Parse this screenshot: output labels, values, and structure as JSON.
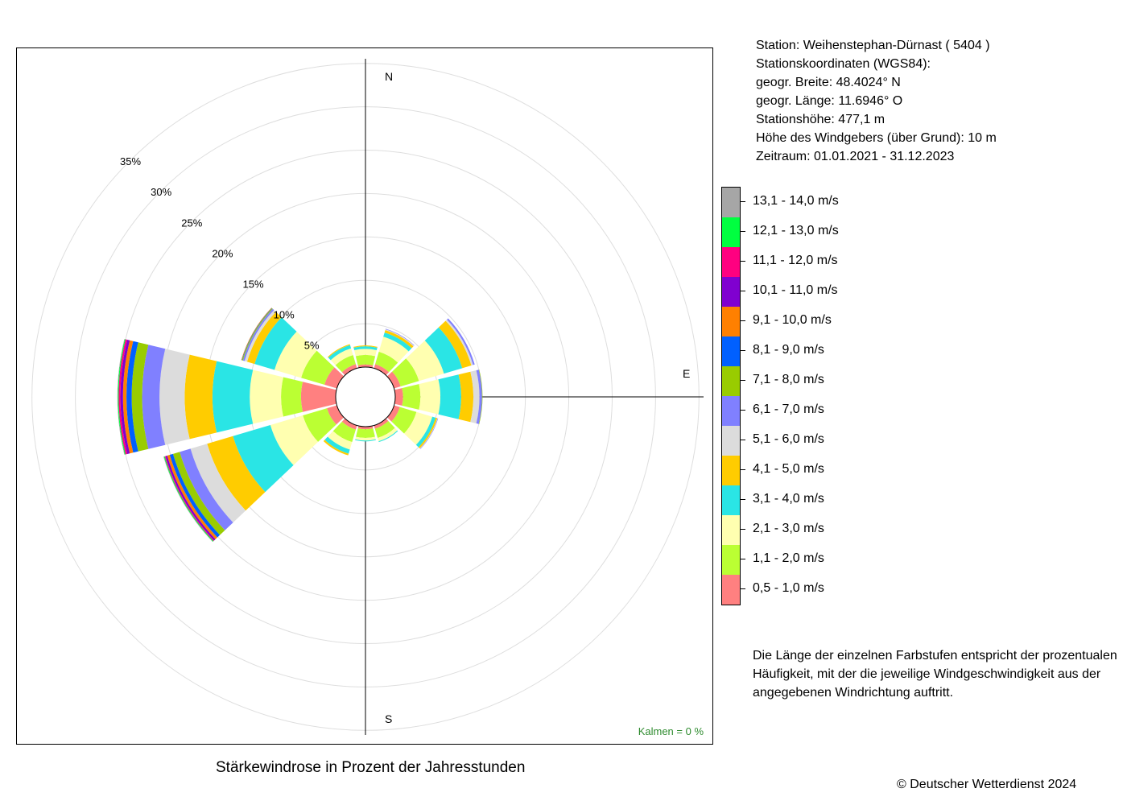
{
  "station": {
    "lines": [
      "Station:  Weihenstephan-Dürnast  ( 5404 )",
      "Stationskoordinaten (WGS84):",
      "geogr. Breite: 48.4024° N",
      "geogr. Länge: 11.6946° O",
      "Stationshöhe: 477,1 m",
      "Höhe des Windgebers (über Grund): 10 m",
      "Zeitraum: 01.01.2021 - 31.12.2023"
    ]
  },
  "compass": {
    "north": "N",
    "east": "E",
    "south": "S"
  },
  "calm_label": "Kalmen  =  0 %",
  "caption": "Stärkewindrose in Prozent der Jahresstunden",
  "note": "Die Länge der einzelnen Farbstufen entspricht der prozentualen Häufigkeit, mit der die jeweilige Windgeschwindigkeit aus der angegebenen Windrichtung auftritt.",
  "copyright": "© Deutscher Wetterdienst  2024",
  "legend": [
    {
      "label": "13,1 - 14,0 m/s",
      "color": "#a6a6a6"
    },
    {
      "label": "12,1 - 13,0 m/s",
      "color": "#00ff40"
    },
    {
      "label": "11,1 - 12,0 m/s",
      "color": "#ff0080"
    },
    {
      "label": "10,1 - 11,0 m/s",
      "color": "#8000d0"
    },
    {
      "label": "9,1 - 10,0 m/s",
      "color": "#ff8000"
    },
    {
      "label": "8,1 - 9,0 m/s",
      "color": "#0060ff"
    },
    {
      "label": "7,1 - 8,0 m/s",
      "color": "#99cc00"
    },
    {
      "label": "6,1 - 7,0 m/s",
      "color": "#8080ff"
    },
    {
      "label": "5,1 - 6,0 m/s",
      "color": "#dcdcdc"
    },
    {
      "label": "4,1 - 5,0 m/s",
      "color": "#ffcc00"
    },
    {
      "label": "3,1 - 4,0 m/s",
      "color": "#2ae5e5"
    },
    {
      "label": "2,1 - 3,0 m/s",
      "color": "#ffffb0"
    },
    {
      "label": "1,1 - 2,0 m/s",
      "color": "#bbff33"
    },
    {
      "label": "0,5 - 1,0 m/s",
      "color": "#ff8080"
    }
  ],
  "chart_data": {
    "type": "wind-rose",
    "title": "Stärkewindrose in Prozent der Jahresstunden",
    "directions_deg": [
      0,
      30,
      60,
      90,
      120,
      150,
      180,
      210,
      240,
      270,
      300,
      330
    ],
    "ring_labels": [
      "5%",
      "10%",
      "15%",
      "20%",
      "25%",
      "30%",
      "35%"
    ],
    "ring_values": [
      5,
      10,
      15,
      20,
      25,
      30,
      35
    ],
    "speed_classes": [
      "0,5 - 1,0 m/s",
      "1,1 - 2,0 m/s",
      "2,1 - 3,0 m/s",
      "3,1 - 4,0 m/s",
      "4,1 - 5,0 m/s",
      "5,1 - 6,0 m/s",
      "6,1 - 7,0 m/s",
      "7,1 - 8,0 m/s",
      "8,1 - 9,0 m/s",
      "9,1 - 10,0 m/s",
      "10,1 - 11,0 m/s",
      "11,1 - 12,0 m/s",
      "12,1 - 13,0 m/s",
      "13,1 - 14,0 m/s"
    ],
    "class_colors": [
      "#ff8080",
      "#bbff33",
      "#ffffb0",
      "#2ae5e5",
      "#ffcc00",
      "#dcdcdc",
      "#8080ff",
      "#99cc00",
      "#0060ff",
      "#ff8000",
      "#8000d0",
      "#ff0080",
      "#00ff40",
      "#a6a6a6"
    ],
    "calm_percent": 0,
    "series": [
      {
        "direction": 0,
        "values": [
          0.3,
          1.1,
          0.7,
          0.3,
          0.1,
          0.0,
          0.0,
          0,
          0,
          0,
          0,
          0,
          0,
          0
        ]
      },
      {
        "direction": 30,
        "values": [
          0.5,
          1.5,
          1.8,
          0.5,
          0.3,
          0.1,
          0.05,
          0,
          0,
          0,
          0,
          0,
          0,
          0
        ]
      },
      {
        "direction": 60,
        "values": [
          0.8,
          2.2,
          3.0,
          2.2,
          1.1,
          0.2,
          0.2,
          0,
          0,
          0,
          0,
          0,
          0,
          0
        ]
      },
      {
        "direction": 90,
        "values": [
          0.9,
          2.0,
          2.3,
          2.4,
          1.4,
          0.7,
          0.3,
          0.05,
          0,
          0,
          0,
          0,
          0,
          0
        ]
      },
      {
        "direction": 120,
        "values": [
          0.7,
          2.0,
          1.9,
          0.4,
          0.2,
          0.05,
          0.05,
          0,
          0,
          0,
          0,
          0,
          0,
          0
        ]
      },
      {
        "direction": 150,
        "values": [
          0.4,
          1.1,
          0.4,
          0.1,
          0,
          0,
          0,
          0,
          0,
          0,
          0,
          0,
          0,
          0
        ]
      },
      {
        "direction": 180,
        "values": [
          0.3,
          1.0,
          0.3,
          0.1,
          0,
          0,
          0,
          0,
          0,
          0,
          0,
          0,
          0,
          0
        ]
      },
      {
        "direction": 210,
        "values": [
          0.5,
          1.5,
          0.9,
          0.5,
          0.2,
          0,
          0,
          0,
          0,
          0,
          0,
          0,
          0,
          0
        ]
      },
      {
        "direction": 240,
        "values": [
          1.2,
          2.9,
          3.9,
          4.5,
          3.1,
          2.0,
          1.3,
          0.8,
          0.4,
          0.3,
          0.2,
          0.1,
          0.1,
          0.05
        ]
      },
      {
        "direction": 270,
        "values": [
          4.0,
          2.3,
          3.6,
          4.3,
          3.2,
          2.9,
          2.0,
          1.2,
          0.6,
          0.4,
          0.3,
          0.2,
          0.1,
          0.05
        ]
      },
      {
        "direction": 300,
        "values": [
          1.5,
          2.8,
          3.2,
          2.4,
          0.9,
          0.3,
          0.2,
          0.1,
          0.05,
          0.05,
          0,
          0,
          0,
          0
        ]
      },
      {
        "direction": 330,
        "values": [
          0.5,
          1.1,
          0.8,
          0.4,
          0.1,
          0,
          0,
          0,
          0,
          0,
          0,
          0,
          0,
          0
        ]
      }
    ]
  }
}
